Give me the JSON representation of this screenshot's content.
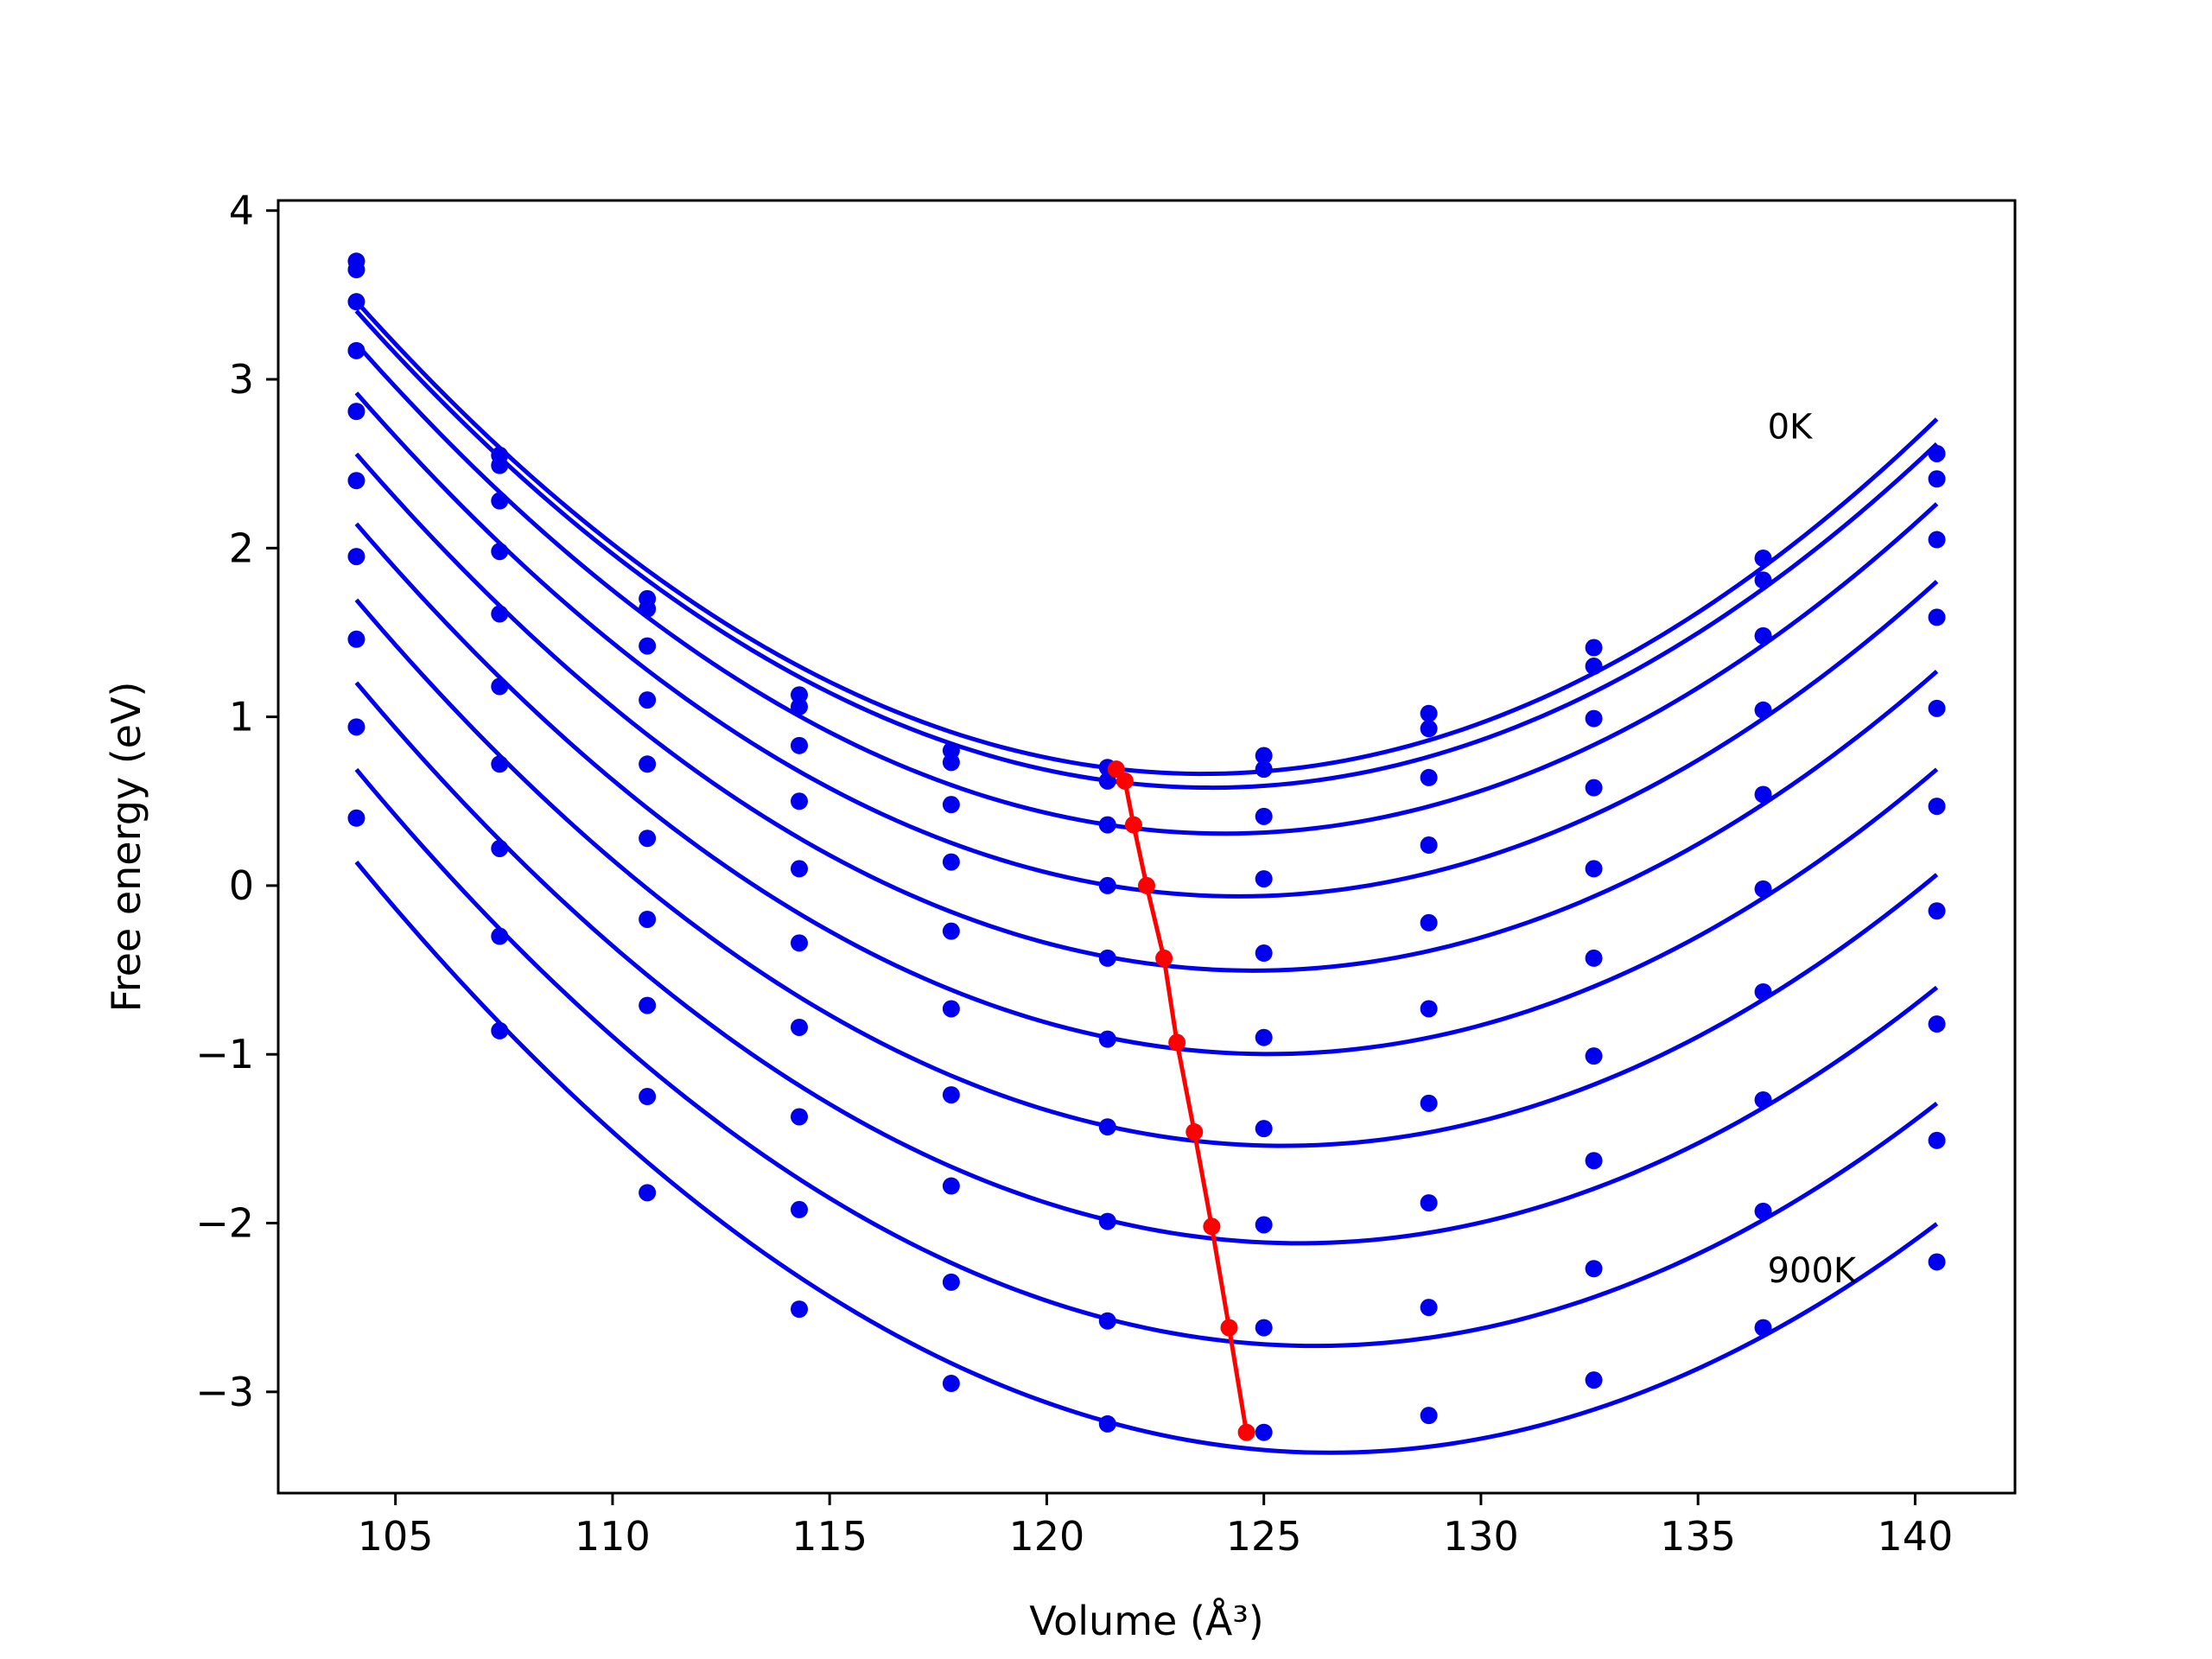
{
  "chart_data": {
    "type": "line",
    "title": "",
    "xlabel": "Volume (Å³)",
    "ylabel": "Free energy (eV)",
    "xlim": [
      102.3,
      142.3
    ],
    "ylim": [
      -3.6,
      4.06
    ],
    "xticks": [
      105,
      110,
      115,
      120,
      125,
      130,
      135,
      140
    ],
    "yticks": [
      4,
      3,
      2,
      1,
      0,
      -1,
      -2,
      -3
    ],
    "xtick_labels": [
      "105",
      "110",
      "115",
      "120",
      "125",
      "130",
      "135",
      "140"
    ],
    "ytick_labels": [
      "4",
      "3",
      "2",
      "1",
      "0",
      "−1",
      "−2",
      "−3"
    ],
    "grid": false,
    "legend": "none",
    "colors": {
      "series": "#0000ee",
      "minima": "#ff0000"
    },
    "x": [
      104.1,
      107.4,
      110.8,
      114.3,
      117.8,
      121.4,
      125.0,
      128.8,
      132.6,
      136.5,
      140.5
    ],
    "series": [
      {
        "values": [
          3.7,
          2.55,
          1.7,
          1.13,
          0.8,
          0.7,
          0.77,
          1.02,
          1.41,
          1.94,
          2.56
        ]
      },
      {
        "values": [
          3.65,
          2.49,
          1.64,
          1.06,
          0.73,
          0.62,
          0.69,
          0.93,
          1.3,
          1.81,
          2.41
        ]
      },
      {
        "values": [
          3.46,
          2.28,
          1.42,
          0.83,
          0.48,
          0.36,
          0.41,
          0.64,
          0.99,
          1.48,
          2.05
        ]
      },
      {
        "values": [
          3.17,
          1.98,
          1.1,
          0.5,
          0.14,
          0.0,
          0.04,
          0.24,
          0.58,
          1.04,
          1.59
        ]
      },
      {
        "values": [
          2.81,
          1.61,
          0.72,
          0.1,
          -0.27,
          -0.43,
          -0.4,
          -0.22,
          0.1,
          0.54,
          1.05
        ]
      },
      {
        "values": [
          2.4,
          1.18,
          0.28,
          -0.34,
          -0.73,
          -0.91,
          -0.9,
          -0.73,
          -0.43,
          -0.02,
          0.47
        ]
      },
      {
        "values": [
          1.95,
          0.72,
          -0.2,
          -0.84,
          -1.24,
          -1.43,
          -1.44,
          -1.29,
          -1.01,
          -0.63,
          -0.15
        ]
      },
      {
        "values": [
          1.46,
          0.22,
          -0.71,
          -1.37,
          -1.78,
          -1.99,
          -2.01,
          -1.88,
          -1.63,
          -1.27,
          -0.82
        ]
      },
      {
        "values": [
          0.94,
          -0.3,
          -1.25,
          -1.92,
          -2.35,
          -2.58,
          -2.62,
          -2.5,
          -2.27,
          -1.93,
          -1.51
        ]
      },
      {
        "values": [
          0.4,
          -0.86,
          -1.82,
          -2.51,
          -2.95,
          -3.19,
          -3.24,
          -3.14,
          -2.93,
          -2.62,
          -2.23
        ]
      }
    ],
    "minima": {
      "x": [
        121.6,
        121.8,
        122.0,
        122.3,
        122.7,
        123.0,
        123.4,
        123.8,
        124.2,
        124.6
      ],
      "y": [
        0.69,
        0.62,
        0.36,
        0.0,
        -0.43,
        -0.93,
        -1.46,
        -2.02,
        -2.62,
        -3.24
      ]
    },
    "annotations": [
      {
        "text": "0K",
        "x": 136.6,
        "y": 2.65
      },
      {
        "text": "900K",
        "x": 136.6,
        "y": -2.35
      }
    ]
  }
}
